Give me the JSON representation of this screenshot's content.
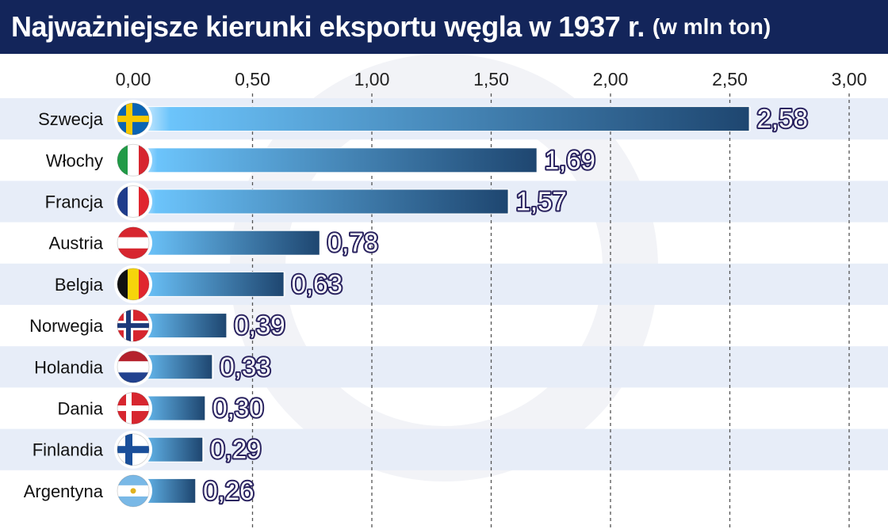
{
  "title": {
    "main": "Najważniejsze kierunki eksportu węgla w 1937 r.",
    "sub": "(w mln ton)"
  },
  "colors": {
    "title_bg": "#13255a",
    "row_stripe": "#e7edf8",
    "bar_light": "#6cc4fb",
    "bar_dark": "#1e4670",
    "value_outline": "#2a2360"
  },
  "chart_data": {
    "type": "bar",
    "orientation": "horizontal",
    "title": "Najważniejsze kierunki eksportu węgla w 1937 r. (w mln ton)",
    "categories": [
      "Szwecja",
      "Włochy",
      "Francja",
      "Austria",
      "Belgia",
      "Norwegia",
      "Holandia",
      "Dania",
      "Finlandia",
      "Argentyna"
    ],
    "values": [
      2.58,
      1.69,
      1.57,
      0.78,
      0.63,
      0.39,
      0.33,
      0.3,
      0.29,
      0.26
    ],
    "value_labels": [
      "2,58",
      "1,69",
      "1,57",
      "0,78",
      "0,63",
      "0,39",
      "0,33",
      "0,30",
      "0,29",
      "0,26"
    ],
    "flags": [
      "sweden-flag",
      "italy-flag",
      "france-flag",
      "austria-flag",
      "belgium-flag",
      "norway-flag",
      "netherlands-flag",
      "denmark-flag",
      "finland-flag",
      "argentina-flag"
    ],
    "xlim": [
      0,
      3
    ],
    "xticks": [
      0,
      0.5,
      1,
      1.5,
      2,
      2.5,
      3
    ],
    "xtick_labels": [
      "0,00",
      "0,50",
      "1,00",
      "1,50",
      "2,00",
      "2,50",
      "3,00"
    ],
    "grid": "vertical dashed",
    "legend": "none"
  }
}
